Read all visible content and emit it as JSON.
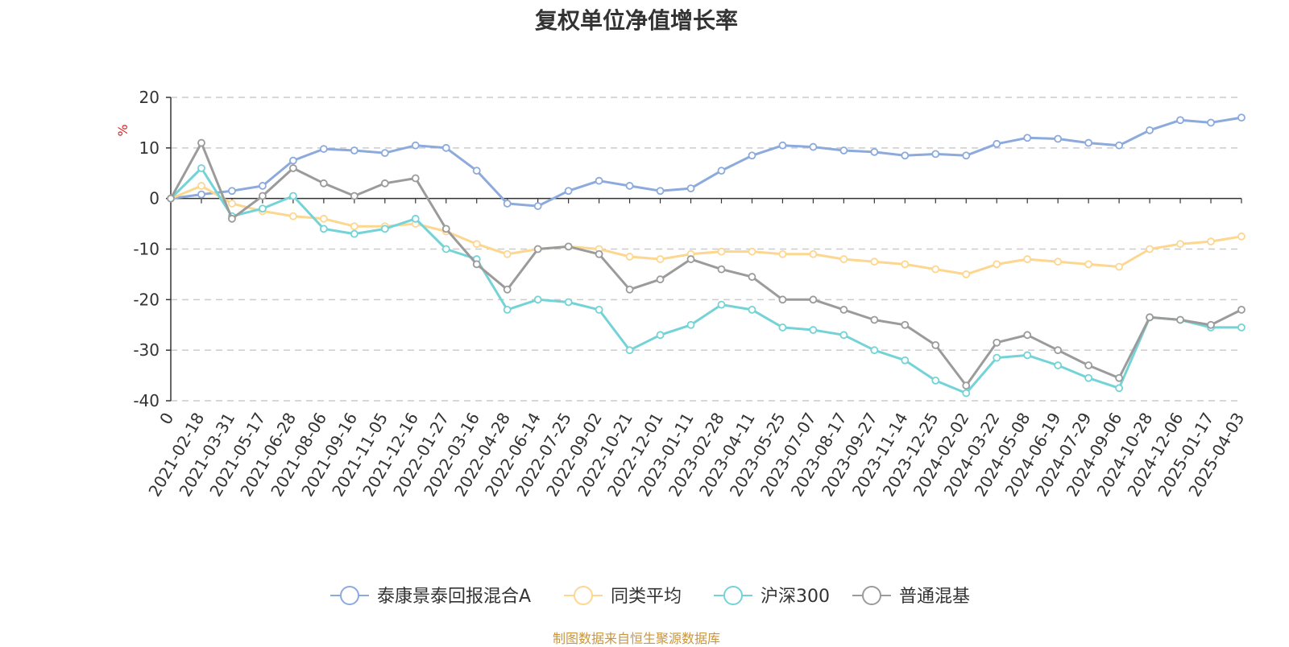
{
  "title": "复权单位净值增长率",
  "source": "制图数据来自恒生聚源数据库",
  "chart_data": {
    "type": "line",
    "title": "复权单位净值增长率",
    "ylabel": "%",
    "ylim": [
      -40,
      20
    ],
    "yticks": [
      20,
      10,
      0,
      -10,
      -20,
      -30,
      -40
    ],
    "grid": true,
    "legend_position": "bottom",
    "x_ticks": [
      "0",
      "2021-02-18",
      "2021-03-31",
      "2021-05-17",
      "2021-06-28",
      "2021-08-06",
      "2021-09-16",
      "2021-11-05",
      "2021-12-16",
      "2022-01-27",
      "2022-03-16",
      "2022-04-28",
      "2022-06-14",
      "2022-07-25",
      "2022-09-02",
      "2022-10-21",
      "2022-12-01",
      "2023-01-11",
      "2023-02-28",
      "2023-04-11",
      "2023-05-25",
      "2023-07-07",
      "2023-08-17",
      "2023-09-27",
      "2023-11-14",
      "2023-12-25",
      "2024-02-02",
      "2024-03-22",
      "2024-05-08",
      "2024-06-19",
      "2024-07-29",
      "2024-09-06",
      "2024-10-28",
      "2024-12-06",
      "2025-01-17",
      "2025-04-03"
    ],
    "series": [
      {
        "name": "泰康景泰回报混合A",
        "color": "#8caadc",
        "values": [
          0,
          0.8,
          1.5,
          2.5,
          7.5,
          9.8,
          9.5,
          9.0,
          10.5,
          10.0,
          5.5,
          -1.0,
          -1.5,
          1.5,
          3.5,
          2.5,
          1.5,
          2.0,
          5.5,
          8.5,
          10.5,
          10.2,
          9.5,
          9.2,
          8.5,
          8.8,
          8.5,
          10.8,
          12.0,
          11.8,
          11.0,
          10.5,
          13.5,
          15.5,
          15.0,
          16.0
        ]
      },
      {
        "name": "同类平均",
        "color": "#fdd68f",
        "values": [
          0,
          2.5,
          -1.0,
          -2.5,
          -3.5,
          -4.0,
          -5.5,
          -5.5,
          -5.0,
          -6.5,
          -9.0,
          -11.0,
          -10.0,
          -9.5,
          -10.0,
          -11.5,
          -12.0,
          -11.0,
          -10.5,
          -10.5,
          -11.0,
          -11.0,
          -12.0,
          -12.5,
          -13.0,
          -14.0,
          -15.0,
          -13.0,
          -12.0,
          -12.5,
          -13.0,
          -13.5,
          -10.0,
          -9.0,
          -8.5,
          -7.5
        ]
      },
      {
        "name": "沪深300",
        "color": "#74d3d7",
        "values": [
          0,
          6.0,
          -3.5,
          -2.0,
          0.5,
          -6.0,
          -7.0,
          -6.0,
          -4.0,
          -10.0,
          -12.0,
          -22.0,
          -20.0,
          -20.5,
          -22.0,
          -30.0,
          -27.0,
          -25.0,
          -21.0,
          -22.0,
          -25.5,
          -26.0,
          -27.0,
          -30.0,
          -32.0,
          -36.0,
          -38.5,
          -31.5,
          -31.0,
          -33.0,
          -35.5,
          -37.5,
          -23.5,
          -24.0,
          -25.5,
          -25.5
        ]
      },
      {
        "name": "普通混基",
        "color": "#9b9b9b",
        "values": [
          0,
          11.0,
          -4.0,
          0.5,
          6.0,
          3.0,
          0.5,
          3.0,
          4.0,
          -6.0,
          -13.0,
          -18.0,
          -10.0,
          -9.5,
          -11.0,
          -18.0,
          -16.0,
          -12.0,
          -14.0,
          -15.5,
          -20.0,
          -20.0,
          -22.0,
          -24.0,
          -25.0,
          -29.0,
          -37.0,
          -28.5,
          -27.0,
          -30.0,
          -33.0,
          -35.5,
          -23.5,
          -24.0,
          -25.0,
          -22.0
        ]
      }
    ]
  }
}
